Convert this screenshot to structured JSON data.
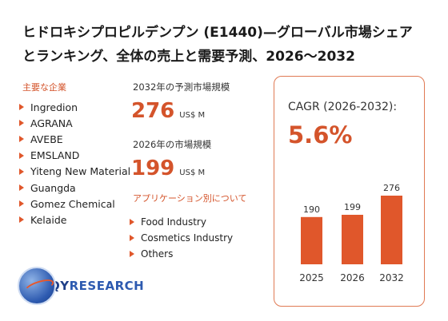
{
  "title": "ヒドロキシプロピルデンプン (E1440)—グローバル市場シェアとランキング、全体の売上と需要予測、2026～2032",
  "companies": {
    "heading": "主要な企業",
    "items": [
      "Ingredion",
      "AGRANA",
      "AVEBE",
      "EMSLAND",
      "Yiteng New Material",
      "Guangda",
      "Gomez Chemical",
      "Kelaide"
    ]
  },
  "market_2032": {
    "label": "2032年の予測市場規模",
    "value": "276",
    "unit": "US$ M"
  },
  "market_2026": {
    "label": "2026年の市場規模",
    "value": "199",
    "unit": "US$ M"
  },
  "applications": {
    "heading": "アプリケーション別について",
    "items": [
      "Food Industry",
      "Cosmetics Industry",
      "Others"
    ]
  },
  "logo": {
    "q_part": "QY",
    "rest": "RESEARCH"
  },
  "cagr": {
    "label": "CAGR (2026-2032):",
    "value": "5.6%"
  },
  "colors": {
    "accent": "#d4542b",
    "bar": "#e0572b",
    "border": "#e07a54"
  },
  "chart_data": {
    "type": "bar",
    "categories": [
      "2025",
      "2026",
      "2032"
    ],
    "values": [
      190,
      199,
      276
    ],
    "title": "",
    "xlabel": "",
    "ylabel": "",
    "ylim": [
      0,
      276
    ]
  }
}
